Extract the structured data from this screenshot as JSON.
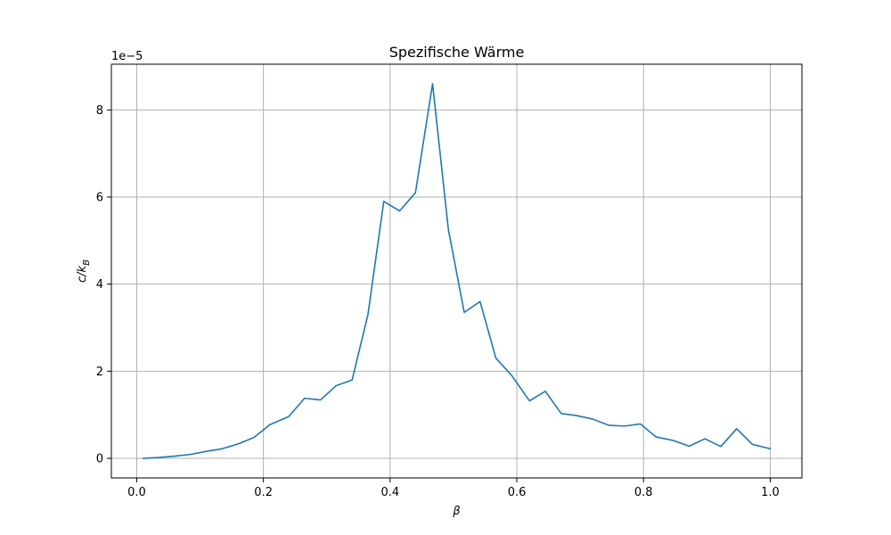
{
  "chart_data": {
    "type": "line",
    "title": "Spezifische Wärme",
    "xlabel": "β",
    "ylabel_main": "c/k",
    "ylabel_sub": "B",
    "y_offset_label": "1e−5",
    "xlim": [
      -0.04,
      1.05
    ],
    "ylim": [
      -0.45,
      9.05
    ],
    "y_scale": "1e-5",
    "grid": true,
    "x_ticks": [
      0.0,
      0.2,
      0.4,
      0.6,
      0.8,
      1.0
    ],
    "x_tick_labels": [
      "0.0",
      "0.2",
      "0.4",
      "0.6",
      "0.8",
      "1.0"
    ],
    "y_ticks": [
      0,
      2,
      4,
      6,
      8
    ],
    "y_tick_labels": [
      "0",
      "2",
      "4",
      "6",
      "8"
    ],
    "series": [
      {
        "color": "#1f77b4",
        "x": [
          0.01,
          0.035,
          0.06,
          0.085,
          0.11,
          0.135,
          0.16,
          0.185,
          0.21,
          0.24,
          0.265,
          0.29,
          0.315,
          0.34,
          0.365,
          0.39,
          0.415,
          0.44,
          0.467,
          0.492,
          0.517,
          0.542,
          0.567,
          0.592,
          0.62,
          0.645,
          0.67,
          0.695,
          0.72,
          0.745,
          0.77,
          0.795,
          0.82,
          0.847,
          0.872,
          0.897,
          0.922,
          0.947,
          0.972,
          1.0
        ],
        "y": [
          0.0,
          0.02,
          0.05,
          0.09,
          0.16,
          0.22,
          0.33,
          0.48,
          0.77,
          0.96,
          1.38,
          1.34,
          1.67,
          1.8,
          3.3,
          5.9,
          5.68,
          6.1,
          8.6,
          5.25,
          3.35,
          3.6,
          2.3,
          1.9,
          1.32,
          1.54,
          1.03,
          0.98,
          0.9,
          0.76,
          0.74,
          0.79,
          0.49,
          0.41,
          0.28,
          0.45,
          0.27,
          0.68,
          0.32,
          0.22
        ]
      }
    ]
  }
}
